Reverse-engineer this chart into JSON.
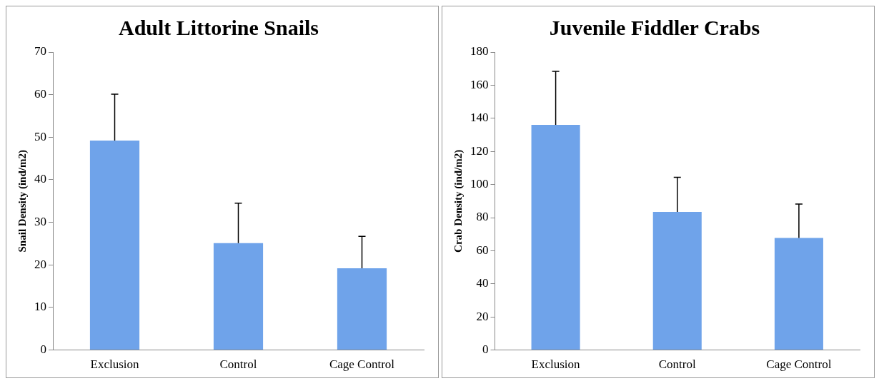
{
  "chart_data": [
    {
      "type": "bar",
      "title": "Adult Littorine Snails",
      "ylabel": "Snail Density (ind/m2)",
      "categories": [
        "Exclusion",
        "Control",
        "Cage Control"
      ],
      "values": [
        49.2,
        25.1,
        19.2
      ],
      "errors": [
        [
          49.2,
          60.1
        ],
        [
          25.1,
          34.5
        ],
        [
          19.2,
          26.7
        ]
      ],
      "color": "#6fa3ea",
      "ylim": [
        0,
        70
      ],
      "yticks": [
        0,
        10,
        20,
        30,
        40,
        50,
        60,
        70
      ]
    },
    {
      "type": "bar",
      "title": "Juvenile Fiddler Crabs",
      "ylabel": "Crab Density (ind/m2)",
      "categories": [
        "Exclusion",
        "Control",
        "Cage Control"
      ],
      "values": [
        136,
        83.5,
        67.7
      ],
      "errors": [
        [
          136,
          168.4
        ],
        [
          83.5,
          104.3
        ],
        [
          67.7,
          88.2
        ]
      ],
      "color": "#6fa3ea",
      "ylim": [
        0,
        180
      ],
      "yticks": [
        0,
        20,
        40,
        60,
        80,
        100,
        120,
        140,
        160,
        180
      ]
    }
  ]
}
